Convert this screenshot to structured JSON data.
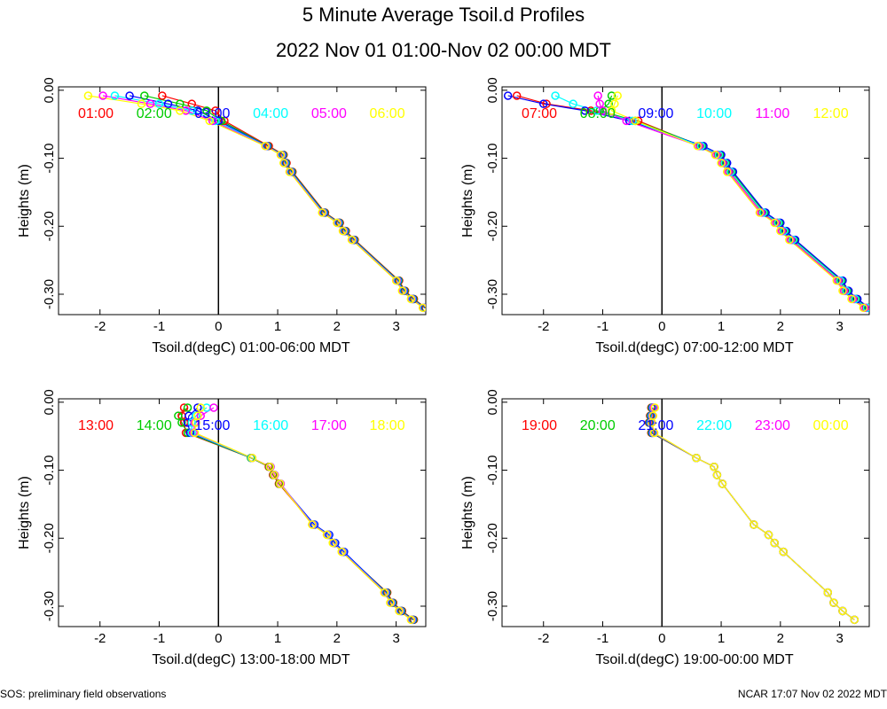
{
  "title": "5 Minute Average Tsoil.d Profiles",
  "subtitle": "2022 Nov 01 01:00-Nov 02 00:00 MDT",
  "footer_left": "SOS: preliminary field observations",
  "footer_right": "NCAR 17:07 Nov 02 2022 MDT",
  "chart_data": [
    {
      "type": "line",
      "xlabel": "Tsoil.d(degC) 01:00-06:00 MDT",
      "ylabel": "Heights (m)",
      "xlim": [
        -2.7,
        3.5
      ],
      "ylim": [
        -0.33,
        0.005
      ],
      "xticks": [
        -2,
        -1,
        0,
        1,
        2,
        3
      ],
      "yticks": [
        0.0,
        -0.1,
        -0.2,
        -0.3
      ],
      "ytick_labels": [
        "0.00",
        "-0.10",
        "-0.20",
        "-0.30"
      ],
      "series": [
        {
          "name": "01:00",
          "color": "#ff0000",
          "x": [
            -0.95,
            -0.45,
            -0.05,
            0.1,
            0.85,
            1.1,
            1.15,
            1.25,
            1.8,
            2.05,
            2.15,
            2.3,
            3.05,
            3.15,
            3.3,
            3.5
          ],
          "y": [
            -0.008,
            -0.02,
            -0.03,
            -0.045,
            -0.082,
            -0.095,
            -0.107,
            -0.12,
            -0.18,
            -0.195,
            -0.207,
            -0.22,
            -0.28,
            -0.295,
            -0.307,
            -0.32
          ]
        },
        {
          "name": "02:00",
          "color": "#00cc00",
          "x": [
            -1.25,
            -0.65,
            -0.2,
            0.05,
            0.83,
            1.09,
            1.14,
            1.24,
            1.79,
            2.04,
            2.14,
            2.29,
            3.04,
            3.14,
            3.29,
            3.49
          ],
          "y": [
            -0.008,
            -0.02,
            -0.03,
            -0.045,
            -0.082,
            -0.095,
            -0.107,
            -0.12,
            -0.18,
            -0.195,
            -0.207,
            -0.22,
            -0.28,
            -0.295,
            -0.307,
            -0.32
          ]
        },
        {
          "name": "03:00",
          "color": "#0000ff",
          "x": [
            -1.5,
            -0.85,
            -0.35,
            0.0,
            0.82,
            1.08,
            1.13,
            1.23,
            1.78,
            2.03,
            2.13,
            2.28,
            3.03,
            3.13,
            3.28,
            3.48
          ],
          "y": [
            -0.008,
            -0.02,
            -0.03,
            -0.045,
            -0.082,
            -0.095,
            -0.107,
            -0.12,
            -0.18,
            -0.195,
            -0.207,
            -0.22,
            -0.28,
            -0.295,
            -0.307,
            -0.32
          ]
        },
        {
          "name": "04:00",
          "color": "#00ffff",
          "x": [
            -1.75,
            -1.0,
            -0.45,
            -0.05,
            0.81,
            1.07,
            1.12,
            1.22,
            1.77,
            2.02,
            2.12,
            2.27,
            3.02,
            3.12,
            3.27,
            3.47
          ],
          "y": [
            -0.008,
            -0.02,
            -0.03,
            -0.045,
            -0.082,
            -0.095,
            -0.107,
            -0.12,
            -0.18,
            -0.195,
            -0.207,
            -0.22,
            -0.28,
            -0.295,
            -0.307,
            -0.32
          ]
        },
        {
          "name": "05:00",
          "color": "#ff00ff",
          "x": [
            -1.95,
            -1.15,
            -0.55,
            -0.1,
            0.8,
            1.06,
            1.11,
            1.21,
            1.76,
            2.01,
            2.11,
            2.26,
            3.01,
            3.11,
            3.26,
            3.46
          ],
          "y": [
            -0.008,
            -0.02,
            -0.03,
            -0.045,
            -0.082,
            -0.095,
            -0.107,
            -0.12,
            -0.18,
            -0.195,
            -0.207,
            -0.22,
            -0.28,
            -0.295,
            -0.307,
            -0.32
          ]
        },
        {
          "name": "06:00",
          "color": "#ffff00",
          "x": [
            -2.2,
            -1.3,
            -0.65,
            -0.15,
            0.79,
            1.05,
            1.1,
            1.2,
            1.75,
            2.0,
            2.1,
            2.25,
            3.0,
            3.1,
            3.25,
            3.45
          ],
          "y": [
            -0.008,
            -0.02,
            -0.03,
            -0.045,
            -0.082,
            -0.095,
            -0.107,
            -0.12,
            -0.18,
            -0.195,
            -0.207,
            -0.22,
            -0.28,
            -0.295,
            -0.307,
            -0.32
          ]
        }
      ]
    },
    {
      "type": "line",
      "xlabel": "Tsoil.d(degC) 07:00-12:00 MDT",
      "ylabel": "Heights (m)",
      "xlim": [
        -2.7,
        3.5
      ],
      "ylim": [
        -0.33,
        0.005
      ],
      "xticks": [
        -2,
        -1,
        0,
        1,
        2,
        3
      ],
      "yticks": [
        0.0,
        -0.1,
        -0.2,
        -0.3
      ],
      "ytick_labels": [
        "0.00",
        "-0.10",
        "-0.20",
        "-0.30"
      ],
      "series": [
        {
          "name": "07:00",
          "color": "#ff0000",
          "x": [
            -2.45,
            -1.95,
            -1.2,
            -0.4,
            0.65,
            0.95,
            1.05,
            1.15,
            1.7,
            1.95,
            2.05,
            2.2,
            3.0,
            3.1,
            3.25,
            3.45
          ],
          "y": [
            -0.008,
            -0.02,
            -0.03,
            -0.045,
            -0.082,
            -0.095,
            -0.107,
            -0.12,
            -0.18,
            -0.195,
            -0.207,
            -0.22,
            -0.28,
            -0.295,
            -0.307,
            -0.32
          ]
        },
        {
          "name": "08:00",
          "color": "#00cc00",
          "x": [
            -0.85,
            -0.9,
            -1.05,
            -0.45,
            0.68,
            0.98,
            1.08,
            1.18,
            1.73,
            1.98,
            2.08,
            2.23,
            3.03,
            3.13,
            3.28,
            3.48
          ],
          "y": [
            -0.008,
            -0.02,
            -0.03,
            -0.045,
            -0.082,
            -0.095,
            -0.107,
            -0.12,
            -0.18,
            -0.195,
            -0.207,
            -0.22,
            -0.28,
            -0.295,
            -0.307,
            -0.32
          ]
        },
        {
          "name": "09:00",
          "color": "#0000ff",
          "x": [
            -2.6,
            -2.0,
            -1.3,
            -0.55,
            0.7,
            1.0,
            1.1,
            1.2,
            1.75,
            2.0,
            2.1,
            2.25,
            3.05,
            3.15,
            3.3,
            3.5
          ],
          "y": [
            -0.008,
            -0.02,
            -0.03,
            -0.045,
            -0.082,
            -0.095,
            -0.107,
            -0.12,
            -0.18,
            -0.195,
            -0.207,
            -0.22,
            -0.28,
            -0.295,
            -0.307,
            -0.32
          ]
        },
        {
          "name": "10:00",
          "color": "#00ffff",
          "x": [
            -1.8,
            -1.5,
            -1.1,
            -0.5,
            0.66,
            0.96,
            1.06,
            1.16,
            1.71,
            1.96,
            2.06,
            2.21,
            3.01,
            3.11,
            3.26,
            3.46
          ],
          "y": [
            -0.008,
            -0.02,
            -0.03,
            -0.045,
            -0.082,
            -0.095,
            -0.107,
            -0.12,
            -0.18,
            -0.195,
            -0.207,
            -0.22,
            -0.28,
            -0.295,
            -0.307,
            -0.32
          ]
        },
        {
          "name": "11:00",
          "color": "#ff00ff",
          "x": [
            -1.08,
            -1.05,
            -1.0,
            -0.6,
            0.62,
            0.92,
            1.02,
            1.12,
            1.67,
            1.92,
            2.02,
            2.17,
            2.97,
            3.07,
            3.22,
            3.42
          ],
          "y": [
            -0.008,
            -0.02,
            -0.03,
            -0.045,
            -0.082,
            -0.095,
            -0.107,
            -0.12,
            -0.18,
            -0.195,
            -0.207,
            -0.22,
            -0.28,
            -0.295,
            -0.307,
            -0.32
          ]
        },
        {
          "name": "12:00",
          "color": "#ffff00",
          "x": [
            -0.75,
            -0.8,
            -0.85,
            -0.45,
            0.6,
            0.9,
            1.0,
            1.1,
            1.65,
            1.9,
            2.0,
            2.15,
            2.95,
            3.05,
            3.2,
            3.4
          ],
          "y": [
            -0.008,
            -0.02,
            -0.03,
            -0.045,
            -0.082,
            -0.095,
            -0.107,
            -0.12,
            -0.18,
            -0.195,
            -0.207,
            -0.22,
            -0.28,
            -0.295,
            -0.307,
            -0.32
          ]
        }
      ]
    },
    {
      "type": "line",
      "xlabel": "Tsoil.d(degC) 13:00-18:00 MDT",
      "ylabel": "Heights (m)",
      "xlim": [
        -2.7,
        3.5
      ],
      "ylim": [
        -0.33,
        0.005
      ],
      "xticks": [
        -2,
        -1,
        0,
        1,
        2,
        3
      ],
      "yticks": [
        0.0,
        -0.1,
        -0.2,
        -0.3
      ],
      "ytick_labels": [
        "0.00",
        "-0.10",
        "-0.20",
        "-0.30"
      ],
      "series": [
        {
          "name": "13:00",
          "color": "#ff0000",
          "x": [
            -0.58,
            -0.62,
            -0.58,
            -0.55,
            0.55,
            0.85,
            0.92,
            1.02,
            1.6,
            1.85,
            1.95,
            2.1,
            2.85,
            2.95,
            3.1,
            3.3
          ],
          "y": [
            -0.008,
            -0.02,
            -0.03,
            -0.045,
            -0.082,
            -0.095,
            -0.107,
            -0.12,
            -0.18,
            -0.195,
            -0.207,
            -0.22,
            -0.28,
            -0.295,
            -0.307,
            -0.32
          ]
        },
        {
          "name": "14:00",
          "color": "#00cc00",
          "x": [
            -0.52,
            -0.68,
            -0.62,
            -0.52,
            0.55,
            0.86,
            0.93,
            1.03,
            1.61,
            1.86,
            1.96,
            2.11,
            2.84,
            2.94,
            3.09,
            3.29
          ],
          "y": [
            -0.008,
            -0.02,
            -0.03,
            -0.045,
            -0.082,
            -0.095,
            -0.107,
            -0.12,
            -0.18,
            -0.195,
            -0.207,
            -0.22,
            -0.28,
            -0.295,
            -0.307,
            -0.32
          ]
        },
        {
          "name": "15:00",
          "color": "#0000ff",
          "x": [
            -0.35,
            -0.5,
            -0.52,
            -0.48,
            0.56,
            0.87,
            0.94,
            1.04,
            1.62,
            1.87,
            1.97,
            2.12,
            2.83,
            2.93,
            3.08,
            3.28
          ],
          "y": [
            -0.008,
            -0.02,
            -0.03,
            -0.045,
            -0.082,
            -0.095,
            -0.107,
            -0.12,
            -0.18,
            -0.195,
            -0.207,
            -0.22,
            -0.28,
            -0.295,
            -0.307,
            -0.32
          ]
        },
        {
          "name": "16:00",
          "color": "#00ffff",
          "x": [
            -0.2,
            -0.38,
            -0.45,
            -0.45,
            0.56,
            0.88,
            0.95,
            1.05,
            1.6,
            1.85,
            1.95,
            2.1,
            2.82,
            2.92,
            3.07,
            3.27
          ],
          "y": [
            -0.008,
            -0.02,
            -0.03,
            -0.045,
            -0.082,
            -0.095,
            -0.107,
            -0.12,
            -0.18,
            -0.195,
            -0.207,
            -0.22,
            -0.28,
            -0.295,
            -0.307,
            -0.32
          ]
        },
        {
          "name": "17:00",
          "color": "#ff00ff",
          "x": [
            -0.08,
            -0.3,
            -0.4,
            -0.42,
            0.57,
            0.88,
            0.95,
            1.05,
            1.59,
            1.84,
            1.94,
            2.09,
            2.81,
            2.91,
            3.06,
            3.26
          ],
          "y": [
            -0.008,
            -0.02,
            -0.03,
            -0.045,
            -0.082,
            -0.095,
            -0.107,
            -0.12,
            -0.18,
            -0.195,
            -0.207,
            -0.22,
            -0.28,
            -0.295,
            -0.307,
            -0.32
          ]
        },
        {
          "name": "18:00",
          "color": "#ffff00",
          "x": [
            -0.3,
            -0.35,
            -0.38,
            -0.4,
            0.57,
            0.87,
            0.94,
            1.04,
            1.58,
            1.83,
            1.93,
            2.08,
            2.8,
            2.9,
            3.05,
            3.25
          ],
          "y": [
            -0.008,
            -0.02,
            -0.03,
            -0.045,
            -0.082,
            -0.095,
            -0.107,
            -0.12,
            -0.18,
            -0.195,
            -0.207,
            -0.22,
            -0.28,
            -0.295,
            -0.307,
            -0.32
          ]
        }
      ]
    },
    {
      "type": "line",
      "xlabel": "Tsoil.d(degC) 19:00-00:00 MDT",
      "ylabel": "Heights (m)",
      "xlim": [
        -2.7,
        3.5
      ],
      "ylim": [
        -0.33,
        0.005
      ],
      "xticks": [
        -2,
        -1,
        0,
        1,
        2,
        3
      ],
      "yticks": [
        0.0,
        -0.1,
        -0.2,
        -0.3
      ],
      "ytick_labels": [
        "0.00",
        "-0.10",
        "-0.20",
        "-0.30"
      ],
      "series": [
        {
          "name": "19:00",
          "color": "#ff0000",
          "x": [
            -0.18,
            -0.2,
            -0.22,
            -0.18,
            0.58,
            0.88,
            0.93,
            1.02,
            1.55,
            1.8,
            1.9,
            2.05,
            2.8,
            2.9,
            3.05,
            3.25
          ],
          "y": [
            -0.008,
            -0.02,
            -0.03,
            -0.045,
            -0.082,
            -0.095,
            -0.107,
            -0.12,
            -0.18,
            -0.195,
            -0.207,
            -0.22,
            -0.28,
            -0.295,
            -0.307,
            -0.32
          ]
        },
        {
          "name": "20:00",
          "color": "#00cc00",
          "x": [
            -0.17,
            -0.19,
            -0.21,
            -0.17,
            0.58,
            0.88,
            0.93,
            1.02,
            1.55,
            1.8,
            1.9,
            2.05,
            2.8,
            2.9,
            3.05,
            3.25
          ],
          "y": [
            -0.008,
            -0.02,
            -0.03,
            -0.045,
            -0.082,
            -0.095,
            -0.107,
            -0.12,
            -0.18,
            -0.195,
            -0.207,
            -0.22,
            -0.28,
            -0.295,
            -0.307,
            -0.32
          ]
        },
        {
          "name": "21:00",
          "color": "#0000ff",
          "x": [
            -0.16,
            -0.18,
            -0.2,
            -0.16,
            0.58,
            0.88,
            0.93,
            1.02,
            1.55,
            1.8,
            1.9,
            2.05,
            2.8,
            2.9,
            3.05,
            3.25
          ],
          "y": [
            -0.008,
            -0.02,
            -0.03,
            -0.045,
            -0.082,
            -0.095,
            -0.107,
            -0.12,
            -0.18,
            -0.195,
            -0.207,
            -0.22,
            -0.28,
            -0.295,
            -0.307,
            -0.32
          ]
        },
        {
          "name": "22:00",
          "color": "#00ffff",
          "x": [
            -0.15,
            -0.17,
            -0.19,
            -0.15,
            0.58,
            0.88,
            0.93,
            1.02,
            1.55,
            1.8,
            1.9,
            2.05,
            2.8,
            2.9,
            3.05,
            3.25
          ],
          "y": [
            -0.008,
            -0.02,
            -0.03,
            -0.045,
            -0.082,
            -0.095,
            -0.107,
            -0.12,
            -0.18,
            -0.195,
            -0.207,
            -0.22,
            -0.28,
            -0.295,
            -0.307,
            -0.32
          ]
        },
        {
          "name": "23:00",
          "color": "#ff00ff",
          "x": [
            -0.14,
            -0.16,
            -0.18,
            -0.14,
            0.58,
            0.88,
            0.93,
            1.02,
            1.55,
            1.8,
            1.9,
            2.05,
            2.8,
            2.9,
            3.05,
            3.25
          ],
          "y": [
            -0.008,
            -0.02,
            -0.03,
            -0.045,
            -0.082,
            -0.095,
            -0.107,
            -0.12,
            -0.18,
            -0.195,
            -0.207,
            -0.22,
            -0.28,
            -0.295,
            -0.307,
            -0.32
          ]
        },
        {
          "name": "00:00",
          "color": "#ffff00",
          "x": [
            -0.12,
            -0.15,
            -0.17,
            -0.13,
            0.58,
            0.88,
            0.93,
            1.02,
            1.55,
            1.8,
            1.9,
            2.05,
            2.8,
            2.9,
            3.05,
            3.25
          ],
          "y": [
            -0.008,
            -0.02,
            -0.03,
            -0.045,
            -0.082,
            -0.095,
            -0.107,
            -0.12,
            -0.18,
            -0.195,
            -0.207,
            -0.22,
            -0.28,
            -0.295,
            -0.307,
            -0.32
          ]
        }
      ]
    }
  ]
}
